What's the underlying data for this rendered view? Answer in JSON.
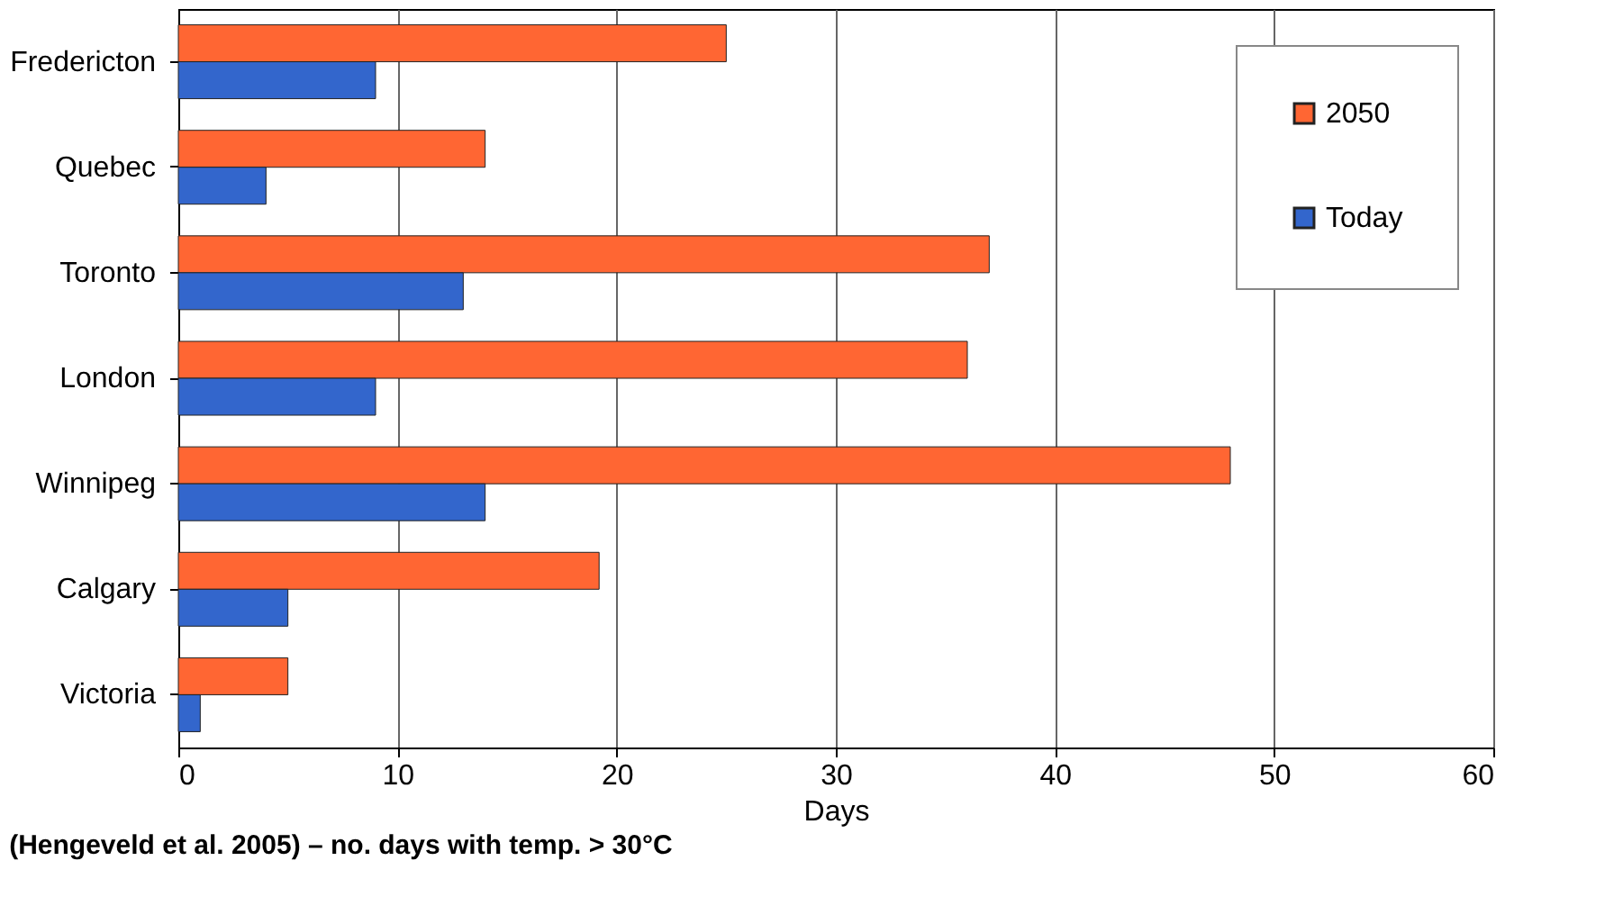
{
  "chart_data": {
    "type": "bar",
    "orientation": "horizontal",
    "xlabel": "Days",
    "categories": [
      "Fredericton",
      "Quebec",
      "Toronto",
      "London",
      "Winnipeg",
      "Calgary",
      "Victoria"
    ],
    "series": [
      {
        "name": "2050",
        "color": "#ff6633",
        "values": [
          25,
          14,
          37,
          36,
          48,
          19.2,
          5
        ]
      },
      {
        "name": "Today",
        "color": "#3366cc",
        "values": [
          9,
          4,
          13,
          9,
          14,
          5,
          1
        ]
      }
    ],
    "xlim": [
      0,
      60
    ],
    "xticks": [
      0,
      10,
      20,
      30,
      40,
      50,
      60
    ],
    "grid": "x",
    "legend": "top right",
    "annotations": [
      "(Hengeveld et al. 2005) – no. days with temp. > 30°C"
    ]
  }
}
